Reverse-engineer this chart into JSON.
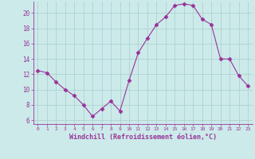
{
  "x": [
    0,
    1,
    2,
    3,
    4,
    5,
    6,
    7,
    8,
    9,
    10,
    11,
    12,
    13,
    14,
    15,
    16,
    17,
    18,
    19,
    20,
    21,
    22,
    23
  ],
  "y": [
    12.5,
    12.2,
    11.0,
    10.0,
    9.2,
    8.0,
    6.5,
    7.5,
    8.5,
    7.2,
    11.2,
    14.8,
    16.7,
    18.5,
    19.5,
    21.0,
    21.2,
    21.0,
    19.2,
    18.5,
    14.0,
    14.0,
    11.8,
    10.5
  ],
  "xlim": [
    -0.5,
    23.5
  ],
  "ylim": [
    5.5,
    21.5
  ],
  "yticks": [
    6,
    8,
    10,
    12,
    14,
    16,
    18,
    20
  ],
  "xticks": [
    0,
    1,
    2,
    3,
    4,
    5,
    6,
    7,
    8,
    9,
    10,
    11,
    12,
    13,
    14,
    15,
    16,
    17,
    18,
    19,
    20,
    21,
    22,
    23
  ],
  "xlabel": "Windchill (Refroidissement éolien,°C)",
  "line_color": "#993399",
  "marker": "D",
  "marker_size": 2.5,
  "bg_color": "#cceaea",
  "grid_color": "#aacccc",
  "axis_color": "#993399",
  "tick_color": "#993399",
  "label_color": "#993399",
  "font_family": "monospace"
}
